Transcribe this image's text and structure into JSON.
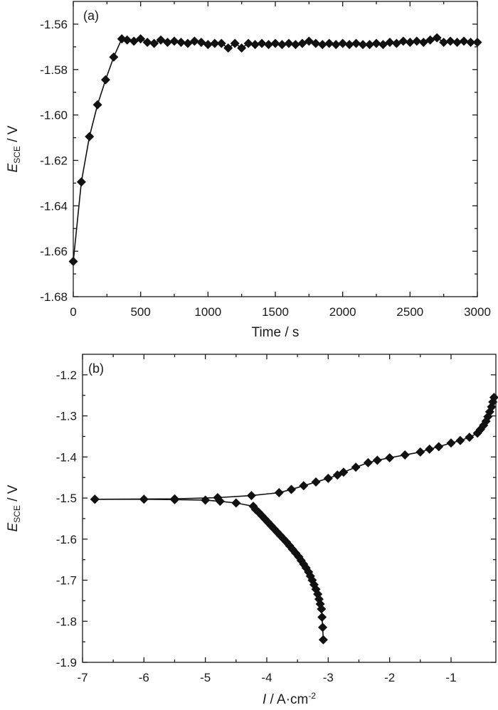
{
  "colors": {
    "line": "#111111",
    "axis": "#1a1a1a",
    "background": "#ffffff"
  },
  "chart_data": [
    {
      "type": "line",
      "panel_label": "(a)",
      "xlabel": "Time / s",
      "ylabel_main": "E",
      "ylabel_sub": "SCE",
      "ylabel_unit": " / V",
      "xlim": [
        0,
        3000
      ],
      "ylim": [
        -1.68,
        -1.55
      ],
      "x_ticks": [
        0,
        500,
        1000,
        1500,
        2000,
        2500,
        3000
      ],
      "x_tick_labels": [
        "0",
        "500",
        "1000",
        "1500",
        "2000",
        "2500",
        "3000"
      ],
      "y_ticks": [
        -1.68,
        -1.66,
        -1.64,
        -1.62,
        -1.6,
        -1.58,
        -1.56
      ],
      "y_tick_labels": [
        "-1.68",
        "-1.66",
        "-1.64",
        "-1.62",
        "-1.60",
        "-1.58",
        "-1.56"
      ],
      "marker": "diamond",
      "series": [
        {
          "x": [
            0,
            60,
            120,
            180,
            240,
            300,
            360,
            400,
            450,
            500,
            550,
            600,
            650,
            700,
            750,
            800,
            850,
            900,
            950,
            1000,
            1050,
            1100,
            1150,
            1200,
            1250,
            1300,
            1350,
            1400,
            1450,
            1500,
            1550,
            1600,
            1650,
            1700,
            1750,
            1800,
            1850,
            1900,
            1950,
            2000,
            2050,
            2100,
            2150,
            2200,
            2250,
            2300,
            2350,
            2400,
            2450,
            2500,
            2550,
            2600,
            2650,
            2700,
            2750,
            2800,
            2850,
            2900,
            2950,
            3000
          ],
          "y": [
            -1.6645,
            -1.6295,
            -1.6095,
            -1.5955,
            -1.5845,
            -1.5745,
            -1.5665,
            -1.567,
            -1.5675,
            -1.5665,
            -1.568,
            -1.5685,
            -1.567,
            -1.568,
            -1.5675,
            -1.568,
            -1.5685,
            -1.5675,
            -1.568,
            -1.569,
            -1.5685,
            -1.5685,
            -1.5705,
            -1.5685,
            -1.5705,
            -1.5685,
            -1.569,
            -1.5685,
            -1.569,
            -1.5685,
            -1.569,
            -1.5685,
            -1.569,
            -1.5685,
            -1.5675,
            -1.5685,
            -1.569,
            -1.5685,
            -1.569,
            -1.5685,
            -1.569,
            -1.5685,
            -1.569,
            -1.569,
            -1.5685,
            -1.569,
            -1.568,
            -1.5685,
            -1.5675,
            -1.568,
            -1.5675,
            -1.568,
            -1.567,
            -1.566,
            -1.568,
            -1.5675,
            -1.568,
            -1.5675,
            -1.568,
            -1.568
          ]
        }
      ]
    },
    {
      "type": "line",
      "panel_label": "(b)",
      "xlabel_italic": "I",
      "xlabel_rest": " / A·cm",
      "xlabel_sup": "-2",
      "ylabel_main": "E",
      "ylabel_sub": "SCE",
      "ylabel_unit": " / V",
      "xlim": [
        -7,
        -0.27
      ],
      "ylim": [
        -1.9,
        -1.15
      ],
      "x_ticks": [
        -7,
        -6,
        -5,
        -4,
        -3,
        -2,
        -1
      ],
      "x_tick_labels": [
        "-7",
        "-6",
        "-5",
        "-4",
        "-3",
        "-2",
        "-1"
      ],
      "y_ticks": [
        -1.9,
        -1.8,
        -1.7,
        -1.6,
        -1.5,
        -1.4,
        -1.3,
        -1.2
      ],
      "y_tick_labels": [
        "-1.9",
        "-1.8",
        "-1.7",
        "-1.6",
        "-1.5",
        "-1.4",
        "-1.3",
        "-1.2"
      ],
      "marker": "diamond",
      "series": [
        {
          "x": [
            -6.8,
            -6.0,
            -5.5,
            -5.0,
            -4.76,
            -4.5,
            -4.22,
            -4.18,
            -4.13,
            -4.08,
            -4.03,
            -3.98,
            -3.93,
            -3.88,
            -3.83,
            -3.78,
            -3.73,
            -3.68,
            -3.63,
            -3.58,
            -3.53,
            -3.48,
            -3.44,
            -3.4,
            -3.36,
            -3.32,
            -3.29,
            -3.26,
            -3.23,
            -3.2,
            -3.17,
            -3.15,
            -3.13,
            -3.11,
            -3.1,
            -3.09,
            -3.08
          ],
          "y": [
            -1.503,
            -1.503,
            -1.504,
            -1.505,
            -1.508,
            -1.512,
            -1.52,
            -1.528,
            -1.535,
            -1.543,
            -1.551,
            -1.559,
            -1.567,
            -1.575,
            -1.583,
            -1.591,
            -1.599,
            -1.607,
            -1.616,
            -1.625,
            -1.634,
            -1.643,
            -1.652,
            -1.661,
            -1.67,
            -1.68,
            -1.69,
            -1.7,
            -1.711,
            -1.722,
            -1.734,
            -1.746,
            -1.758,
            -1.77,
            -1.79,
            -1.815,
            -1.845
          ]
        },
        {
          "x": [
            -6.8,
            -5.5,
            -4.8,
            -4.25,
            -3.8,
            -3.6,
            -3.4,
            -3.2,
            -3.0,
            -2.85,
            -2.75,
            -2.55,
            -2.35,
            -2.2,
            -2.0,
            -1.75,
            -1.5,
            -1.35,
            -1.2,
            -1.0,
            -0.85,
            -0.7,
            -0.57,
            -0.52,
            -0.47,
            -0.43,
            -0.4,
            -0.37,
            -0.34,
            -0.32,
            -0.3
          ],
          "y": [
            -1.503,
            -1.502,
            -1.499,
            -1.494,
            -1.487,
            -1.479,
            -1.47,
            -1.461,
            -1.452,
            -1.444,
            -1.437,
            -1.425,
            -1.414,
            -1.408,
            -1.402,
            -1.395,
            -1.388,
            -1.381,
            -1.375,
            -1.366,
            -1.36,
            -1.352,
            -1.342,
            -1.333,
            -1.323,
            -1.313,
            -1.302,
            -1.29,
            -1.278,
            -1.266,
            -1.255
          ]
        }
      ]
    }
  ]
}
